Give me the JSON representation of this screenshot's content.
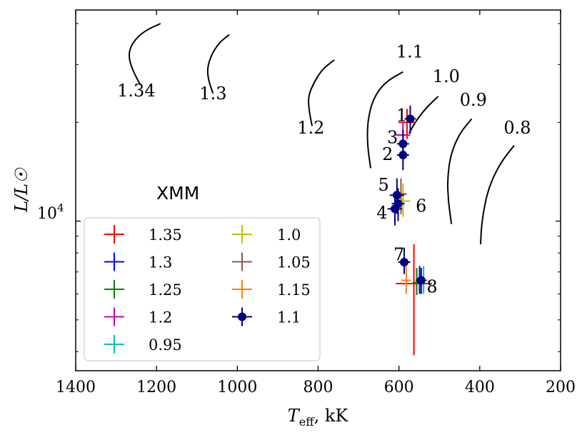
{
  "chart_data": {
    "type": "scatter",
    "title": "",
    "xlabel_main": "T",
    "xlabel_sub": "eff",
    "xlabel_unit": ", kK",
    "ylabel": "L/L☉",
    "xlim": [
      1400,
      200
    ],
    "x_reversed": true,
    "y_scale": "log",
    "ylim": [
      3500,
      44000
    ],
    "x_ticks": [
      1400,
      1200,
      1000,
      800,
      600,
      400,
      200
    ],
    "x_tick_labels": [
      "1400",
      "1200",
      "1000",
      "800",
      "600",
      "400",
      "200"
    ],
    "y_tick_major": 10000,
    "y_tick_label_base": "10",
    "y_tick_label_exp": "4",
    "y_minor_ticks": [
      4000,
      5000,
      6000,
      7000,
      8000,
      9000,
      20000,
      30000,
      40000
    ],
    "annotation": "XMM",
    "tracks": [
      {
        "label": "1.34",
        "label_at": [
          1250,
          24000
        ],
        "points": [
          [
            1190,
            40000
          ],
          [
            1230,
            38000
          ],
          [
            1260,
            35000
          ],
          [
            1270,
            32000
          ],
          [
            1260,
            29000
          ],
          [
            1240,
            26000
          ]
        ]
      },
      {
        "label": "1.3",
        "label_at": [
          1060,
          23500
        ],
        "points": [
          [
            1020,
            37000
          ],
          [
            1045,
            35000
          ],
          [
            1065,
            32000
          ],
          [
            1075,
            29000
          ],
          [
            1070,
            26500
          ],
          [
            1060,
            24500
          ]
        ]
      },
      {
        "label": "1.2",
        "label_at": [
          818,
          18500
        ],
        "points": [
          [
            760,
            31000
          ],
          [
            790,
            29000
          ],
          [
            810,
            26500
          ],
          [
            825,
            24000
          ],
          [
            822,
            21500
          ],
          [
            815,
            19500
          ]
        ]
      },
      {
        "label": "1.1",
        "label_at": [
          573,
          31500
        ],
        "points": [
          [
            590,
            28500
          ],
          [
            635,
            26500
          ],
          [
            665,
            23500
          ],
          [
            678,
            20000
          ],
          [
            678,
            17000
          ],
          [
            670,
            14500
          ]
        ]
      },
      {
        "label": "1.0",
        "label_at": [
          483,
          26500
        ],
        "points": [
          [
            503,
            24000
          ],
          [
            535,
            22000
          ],
          [
            560,
            20000
          ],
          [
            575,
            18500
          ]
        ]
      },
      {
        "label": "0.9",
        "label_at": [
          416,
          22500
        ],
        "points": [
          [
            420,
            20500
          ],
          [
            450,
            18500
          ],
          [
            472,
            16000
          ],
          [
            480,
            13500
          ],
          [
            478,
            11500
          ],
          [
            470,
            9800
          ]
        ]
      },
      {
        "label": "0.8",
        "label_at": [
          307,
          18500
        ],
        "points": [
          [
            315,
            17000
          ],
          [
            350,
            15000
          ],
          [
            380,
            12500
          ],
          [
            395,
            10000
          ],
          [
            398,
            8500
          ]
        ]
      }
    ],
    "point_labels": [
      {
        "label": "1",
        "x": 593,
        "y": 21000
      },
      {
        "label": "3",
        "x": 616,
        "y": 18000
      },
      {
        "label": "2",
        "x": 628,
        "y": 16000
      },
      {
        "label": "5",
        "x": 638,
        "y": 12900
      },
      {
        "label": "4",
        "x": 642,
        "y": 10600
      },
      {
        "label": "6",
        "x": 545,
        "y": 11100
      },
      {
        "label": "7",
        "x": 600,
        "y": 7900
      },
      {
        "label": "8",
        "x": 518,
        "y": 6300
      }
    ],
    "series": [
      {
        "name": "1.35",
        "color": "#ff0000",
        "points": [
          {
            "x": 563,
            "y": 6450,
            "xerr": 45,
            "ylo": 3900,
            "yhi": 8500
          },
          {
            "x": 580,
            "y": 20000,
            "xerr": 22,
            "ylo": 17800,
            "yhi": 22000
          }
        ]
      },
      {
        "name": "1.3",
        "color": "#0000ff",
        "points": [
          {
            "x": 549,
            "y": 6600,
            "xerr": 10,
            "ylo": 6000,
            "yhi": 7300
          }
        ]
      },
      {
        "name": "1.25",
        "color": "#008000",
        "points": [
          {
            "x": 556,
            "y": 6500,
            "xerr": 10,
            "ylo": 5950,
            "yhi": 7200
          }
        ]
      },
      {
        "name": "1.2",
        "color": "#bf00bf",
        "points": [
          {
            "x": 590,
            "y": 18300,
            "xerr": 18,
            "ylo": 16500,
            "yhi": 20000
          }
        ]
      },
      {
        "name": "0.95",
        "color": "#00bfbf",
        "points": [
          {
            "x": 539,
            "y": 6600,
            "xerr": 10,
            "ylo": 6000,
            "yhi": 7300
          }
        ]
      },
      {
        "name": "1.0",
        "color": "#bfbf00",
        "points": [
          {
            "x": 590,
            "y": 11500,
            "xerr": 18,
            "ylo": 10300,
            "yhi": 13000
          }
        ]
      },
      {
        "name": "1.05",
        "color": "#8c564b",
        "points": [
          {
            "x": 595,
            "y": 12100,
            "xerr": 15,
            "ylo": 10500,
            "yhi": 13500
          }
        ]
      },
      {
        "name": "1.15",
        "color": "#ff7f0e",
        "points": [
          {
            "x": 582,
            "y": 6600,
            "xerr": 12,
            "ylo": 6000,
            "yhi": 7300
          }
        ]
      },
      {
        "name": "1.1",
        "color": "#000080",
        "points": [
          {
            "x": 572,
            "y": 20500,
            "xerr": 14,
            "ylo": 18500,
            "yhi": 22500
          },
          {
            "x": 590,
            "y": 17200,
            "xerr": 15,
            "ylo": 15500,
            "yhi": 19000
          },
          {
            "x": 590,
            "y": 15900,
            "xerr": 15,
            "ylo": 14300,
            "yhi": 17500
          },
          {
            "x": 605,
            "y": 12000,
            "xerr": 18,
            "ylo": 10500,
            "yhi": 13500
          },
          {
            "x": 610,
            "y": 10900,
            "xerr": 18,
            "ylo": 9700,
            "yhi": 12300
          },
          {
            "x": 602,
            "y": 11300,
            "xerr": 16,
            "ylo": 10000,
            "yhi": 12600
          },
          {
            "x": 587,
            "y": 7500,
            "xerr": 15,
            "ylo": 6900,
            "yhi": 8300
          },
          {
            "x": 545,
            "y": 6600,
            "xerr": 12,
            "ylo": 6000,
            "yhi": 7200
          }
        ]
      }
    ],
    "legend": {
      "placement": "lower-left",
      "columns": 2,
      "entries": [
        "1.35",
        "1.3",
        "1.25",
        "1.2",
        "0.95",
        "1.0",
        "1.05",
        "1.15",
        "1.1"
      ]
    }
  }
}
